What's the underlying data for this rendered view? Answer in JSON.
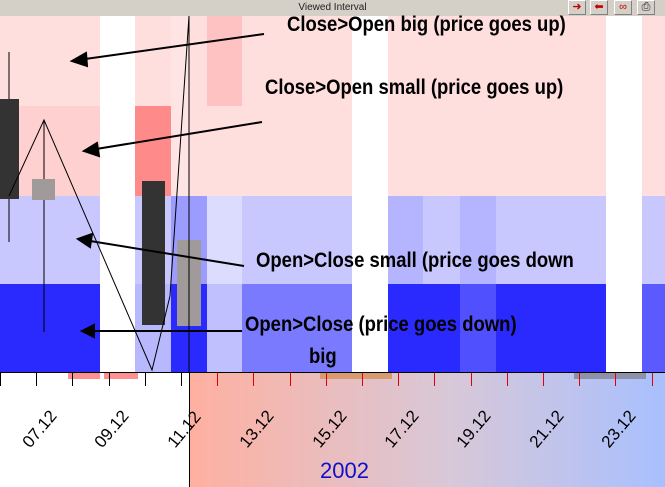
{
  "window": {
    "title": "Viewed Interval",
    "buttons": [
      {
        "name": "arrow-right-icon",
        "glyph": "➜"
      },
      {
        "name": "arrow-left-icon",
        "glyph": "⬅"
      },
      {
        "name": "glasses-icon",
        "glyph": "∞"
      },
      {
        "name": "print-icon",
        "glyph": "⎙"
      }
    ]
  },
  "annotations": {
    "close_open_big": "Close>Open big  (price goes up)",
    "close_open_small": "Close>Open small (price goes up)",
    "open_close_small": "Open>Close small (price goes down",
    "open_close_big_line1": "Open>Close (price goes down)",
    "open_close_big_line2": "big"
  },
  "axis": {
    "ticks": [
      "07.12",
      "09.12",
      "11.12",
      "13.12",
      "15.12",
      "17.12",
      "19.12",
      "21.12",
      "23.12"
    ],
    "year": "2002"
  },
  "colors": {
    "up_big": "#ffdede",
    "up_small": "#ffc8c8",
    "up_strong": "#ff8a8a",
    "down_small": "#c8c8ff",
    "down_light": "#dcdcff",
    "down_mid": "#8c8cff",
    "down_big": "#2a2aff",
    "candle_dark": "#333333",
    "candle_grey": "#a09a9a"
  }
}
